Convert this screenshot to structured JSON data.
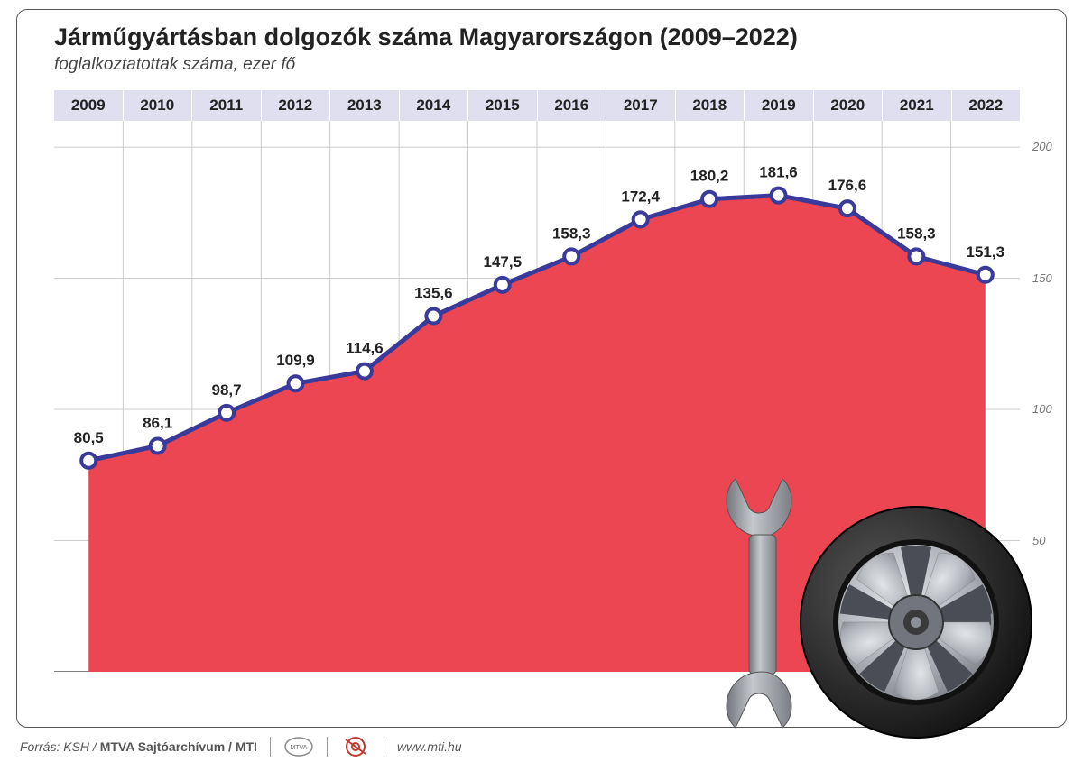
{
  "title": "Járműgyártásban dolgozók száma Magyarországon (2009–2022)",
  "subtitle": "foglalkoztatottak száma, ezer fő",
  "chart": {
    "type": "area-line",
    "years": [
      "2009",
      "2010",
      "2011",
      "2012",
      "2013",
      "2014",
      "2015",
      "2016",
      "2017",
      "2018",
      "2019",
      "2020",
      "2021",
      "2022"
    ],
    "values": [
      80.5,
      86.1,
      98.7,
      109.9,
      114.6,
      135.6,
      147.5,
      158.3,
      172.4,
      180.2,
      181.6,
      176.6,
      158.3,
      151.3
    ],
    "value_labels": [
      "80,5",
      "86,1",
      "98,7",
      "109,9",
      "114,6",
      "135,6",
      "147,5",
      "158,3",
      "172,4",
      "180,2",
      "181,6",
      "176,6",
      "158,3",
      "151,3"
    ],
    "ylim": [
      0,
      210
    ],
    "yticks": [
      50,
      100,
      150,
      200
    ],
    "header_bg": "#dfdff0",
    "grid_color": "#cccccc",
    "area_color": "#eb4651",
    "line_color": "#3a3a9a",
    "line_width": 5,
    "marker_outer": "#3a3a9a",
    "marker_inner": "#ffffff",
    "marker_radius": 8,
    "label_fontsize": 17,
    "label_color": "#222222",
    "background_color": "#ffffff",
    "y_tick_color": "#888888"
  },
  "footer": {
    "source_prefix": "Forrás: ",
    "source_italic": "KSH",
    "source_bold": "MTVA Sajtóarchívum / MTI",
    "url": "www.mti.hu",
    "logo1_label": "MTVA",
    "logo2_label": "MTI"
  },
  "decor": {
    "wrench_color": "#8b8f96",
    "wrench_highlight": "#c5c8cc",
    "tire_outer": "#2b2b2b",
    "tire_rim": "#b0b4b9",
    "tire_hub": "#555555"
  }
}
